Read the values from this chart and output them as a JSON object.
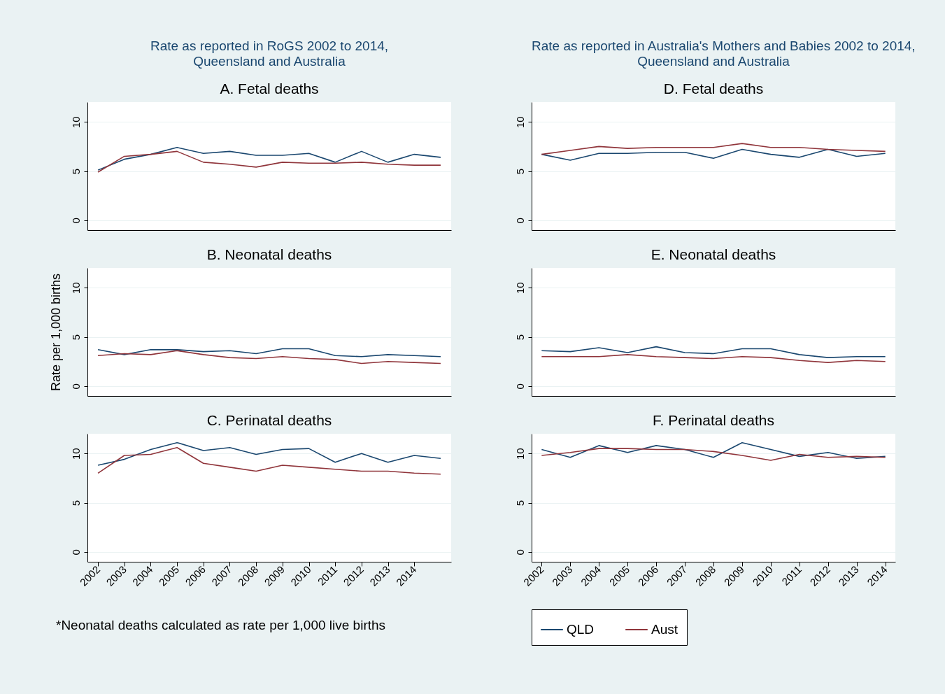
{
  "chart_data": [
    {
      "type": "line",
      "title": "A. Fetal deaths",
      "subtitle": "Rate as reported in RoGS 2002 to 2014, Queensland and Australia",
      "x": [
        2002,
        2003,
        2004,
        2005,
        2006,
        2007,
        2008,
        2009,
        2010,
        2011,
        2012,
        2013,
        2014,
        2015
      ],
      "xlim": [
        2001.6,
        2015.4
      ],
      "xticks": [
        2002,
        2003,
        2004,
        2005,
        2006,
        2007,
        2008,
        2009,
        2010,
        2011,
        2012,
        2013,
        2014
      ],
      "ylim": [
        -1,
        12
      ],
      "yticks": [
        0,
        5,
        10
      ],
      "grid": "y",
      "tick_labels": "y",
      "series": [
        {
          "color": "#1a476f",
          "values": [
            5.1,
            6.2,
            6.7,
            7.4,
            6.8,
            7.0,
            6.6,
            6.6,
            6.8,
            5.9,
            7.0,
            5.9,
            6.7,
            6.4
          ]
        },
        {
          "color": "#90353b",
          "values": [
            4.9,
            6.5,
            6.7,
            7.0,
            5.9,
            5.7,
            5.4,
            5.9,
            5.8,
            5.8,
            5.9,
            5.7,
            5.6,
            5.6
          ]
        }
      ]
    },
    {
      "type": "line",
      "title": "B. Neonatal deaths",
      "ylabel": "Rate per 1,000 births",
      "x": [
        2002,
        2003,
        2004,
        2005,
        2006,
        2007,
        2008,
        2009,
        2010,
        2011,
        2012,
        2013,
        2014,
        2015
      ],
      "xlim": [
        2001.6,
        2015.4
      ],
      "xticks": [
        2002,
        2003,
        2004,
        2005,
        2006,
        2007,
        2008,
        2009,
        2010,
        2011,
        2012,
        2013,
        2014
      ],
      "ylim": [
        -1,
        12
      ],
      "yticks": [
        0,
        5,
        10
      ],
      "grid": "y",
      "tick_labels": "y",
      "series": [
        {
          "color": "#1a476f",
          "values": [
            3.7,
            3.2,
            3.7,
            3.7,
            3.5,
            3.6,
            3.3,
            3.8,
            3.8,
            3.1,
            3.0,
            3.2,
            3.1,
            3.0
          ]
        },
        {
          "color": "#90353b",
          "values": [
            3.1,
            3.3,
            3.2,
            3.6,
            3.2,
            2.9,
            2.8,
            3.0,
            2.8,
            2.7,
            2.3,
            2.5,
            2.4,
            2.3
          ]
        }
      ]
    },
    {
      "type": "line",
      "title": "C. Perinatal deaths",
      "annotations": [
        "*Neonatal deaths calculated as rate per 1,000 live births"
      ],
      "x": [
        2002,
        2003,
        2004,
        2005,
        2006,
        2007,
        2008,
        2009,
        2010,
        2011,
        2012,
        2013,
        2014,
        2015
      ],
      "xlim": [
        2001.6,
        2015.4
      ],
      "xticks": [
        2002,
        2003,
        2004,
        2005,
        2006,
        2007,
        2008,
        2009,
        2010,
        2011,
        2012,
        2013,
        2014
      ],
      "ylim": [
        -1,
        12
      ],
      "yticks": [
        0,
        5,
        10
      ],
      "grid": "y",
      "series": [
        {
          "color": "#1a476f",
          "values": [
            8.8,
            9.4,
            10.4,
            11.1,
            10.3,
            10.6,
            9.9,
            10.4,
            10.5,
            9.1,
            10.0,
            9.1,
            9.8,
            9.5
          ]
        },
        {
          "color": "#90353b",
          "values": [
            8.0,
            9.8,
            9.9,
            10.6,
            9.0,
            8.6,
            8.2,
            8.8,
            8.6,
            8.4,
            8.2,
            8.2,
            8.0,
            7.9
          ]
        }
      ]
    },
    {
      "type": "line",
      "title": "D. Fetal deaths",
      "subtitle": "Rate as reported in Australia's Mothers and Babies 2002 to 2014, Queensland and Australia",
      "x": [
        2002,
        2003,
        2004,
        2005,
        2006,
        2007,
        2008,
        2009,
        2010,
        2011,
        2012,
        2013,
        2014
      ],
      "xlim": [
        2001.65,
        2014.35
      ],
      "xticks": [
        2002,
        2003,
        2004,
        2005,
        2006,
        2007,
        2008,
        2009,
        2010,
        2011,
        2012,
        2013,
        2014
      ],
      "ylim": [
        -1,
        12
      ],
      "yticks": [
        0,
        5,
        10
      ],
      "grid": "y",
      "tick_labels": "y",
      "series": [
        {
          "color": "#1a476f",
          "values": [
            6.7,
            6.1,
            6.8,
            6.8,
            6.9,
            6.9,
            6.3,
            7.2,
            6.7,
            6.4,
            7.2,
            6.5,
            6.8
          ]
        },
        {
          "color": "#90353b",
          "values": [
            6.7,
            7.1,
            7.5,
            7.3,
            7.4,
            7.4,
            7.4,
            7.8,
            7.4,
            7.4,
            7.2,
            7.1,
            7.0
          ]
        }
      ]
    },
    {
      "type": "line",
      "title": "E. Neonatal deaths",
      "x": [
        2002,
        2003,
        2004,
        2005,
        2006,
        2007,
        2008,
        2009,
        2010,
        2011,
        2012,
        2013,
        2014
      ],
      "xlim": [
        2001.65,
        2014.35
      ],
      "xticks": [
        2002,
        2003,
        2004,
        2005,
        2006,
        2007,
        2008,
        2009,
        2010,
        2011,
        2012,
        2013,
        2014
      ],
      "ylim": [
        -1,
        12
      ],
      "yticks": [
        0,
        5,
        10
      ],
      "grid": "y",
      "tick_labels": "y",
      "series": [
        {
          "color": "#1a476f",
          "values": [
            3.6,
            3.5,
            3.9,
            3.4,
            4.0,
            3.4,
            3.3,
            3.8,
            3.8,
            3.2,
            2.9,
            3.0,
            3.0
          ]
        },
        {
          "color": "#90353b",
          "values": [
            3.0,
            3.0,
            3.0,
            3.2,
            3.0,
            2.9,
            2.8,
            3.0,
            2.9,
            2.6,
            2.4,
            2.6,
            2.5
          ]
        }
      ]
    },
    {
      "type": "line",
      "title": "F. Perinatal deaths",
      "legend": "bottom",
      "x": [
        2002,
        2003,
        2004,
        2005,
        2006,
        2007,
        2008,
        2009,
        2010,
        2011,
        2012,
        2013,
        2014
      ],
      "xlim": [
        2001.65,
        2014.35
      ],
      "xticks": [
        2002,
        2003,
        2004,
        2005,
        2006,
        2007,
        2008,
        2009,
        2010,
        2011,
        2012,
        2013,
        2014
      ],
      "ylim": [
        -1,
        12
      ],
      "yticks": [
        0,
        5,
        10
      ],
      "grid": "y",
      "series": [
        {
          "name": "QLD",
          "color": "#1a476f",
          "values": [
            10.4,
            9.6,
            10.8,
            10.1,
            10.8,
            10.4,
            9.6,
            11.1,
            10.4,
            9.7,
            10.1,
            9.5,
            9.7
          ]
        },
        {
          "name": "Aust",
          "color": "#90353b",
          "values": [
            9.8,
            10.1,
            10.5,
            10.5,
            10.4,
            10.4,
            10.2,
            9.8,
            9.3,
            9.9,
            9.6,
            9.7,
            9.6
          ]
        }
      ]
    }
  ]
}
